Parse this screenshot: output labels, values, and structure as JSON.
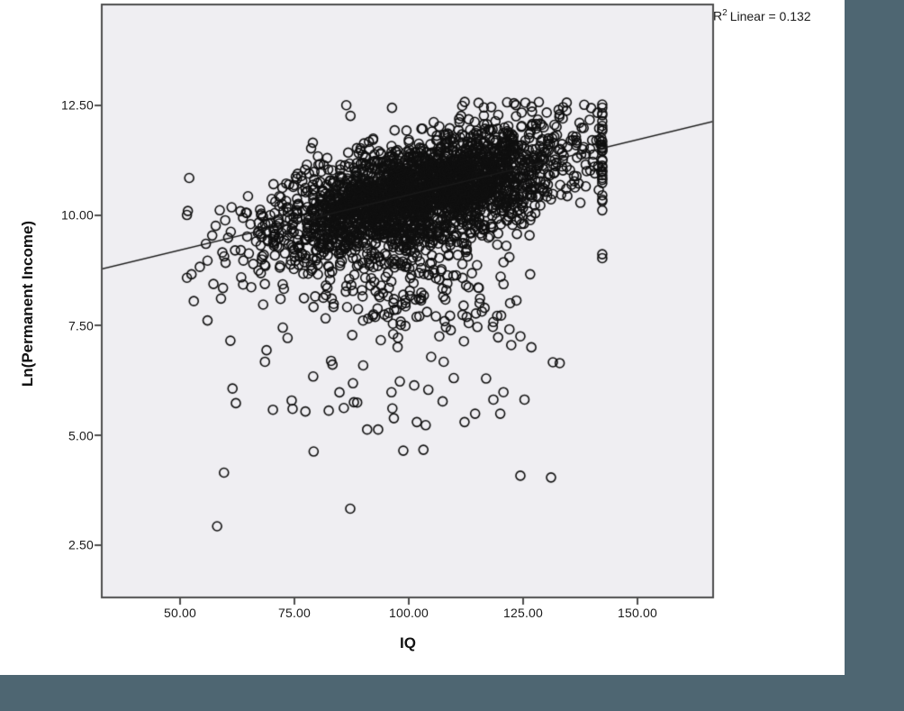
{
  "chrome": {
    "right_strip_color": "#4e6672",
    "bottom_bar_color": "#4e6672"
  },
  "chart_data": {
    "type": "scatter",
    "title": "",
    "xlabel": "IQ",
    "ylabel": "Ln(Permanent Income)",
    "annotation": {
      "prefix": "R",
      "sup": "2",
      "rest": "Linear = 0.132"
    },
    "x_ticks": [
      50,
      75,
      100,
      125,
      150
    ],
    "x_tick_labels": [
      "50.00",
      "75.00",
      "100.00",
      "125.00",
      "150.00"
    ],
    "y_ticks": [
      12.5,
      10.0,
      7.5,
      5.0,
      2.5
    ],
    "y_tick_labels": [
      "12.50",
      "10.00",
      "7.50",
      "5.00",
      "2.50"
    ],
    "xlim": [
      33.3,
      166.6
    ],
    "ylim": [
      1.27,
      14.73
    ],
    "grid": false,
    "legend": "none",
    "plot_bg": "#efeef2",
    "frame_color": "#4d4d4d",
    "marker": {
      "shape": "open-circle",
      "radius": 5.0,
      "stroke": "#101010",
      "stroke_width": 1.6
    },
    "regression_line": {
      "slope": 0.0251,
      "intercept": 7.955,
      "r_squared": 0.132,
      "color": "#1a1a1a",
      "width": 1.4
    },
    "point_cloud_model": {
      "seed": 1337,
      "main_cloud": {
        "n": 2600,
        "x_mean": 103,
        "x_sd": 16.5,
        "x_min": 51.5,
        "x_max": 142.3,
        "residual_sd": 0.6,
        "y_cap": 12.58
      },
      "mid_tail": {
        "n": 210,
        "x_mean": 97,
        "x_sd": 14,
        "x_min": 56,
        "x_max": 138,
        "y_mean": 8.35,
        "y_sd": 0.72,
        "y_min": 6.3,
        "y_max": 9.6
      },
      "low_band": {
        "n": 16,
        "x_mean": 93,
        "x_sd": 16,
        "x_min": 55,
        "x_max": 135,
        "y_mean": 5.95,
        "y_sd": 0.45,
        "y_min": 5.3,
        "y_max": 6.9
      },
      "ceiling_column": {
        "x": 142.3,
        "n": 14,
        "y_mean": 10.7,
        "y_sd": 1.05,
        "y_min": 8.85,
        "y_max": 12.45
      },
      "outlier_points": [
        [
          58.1,
          2.93
        ],
        [
          87.2,
          3.33
        ],
        [
          59.6,
          4.15
        ],
        [
          124.4,
          4.08
        ],
        [
          131.1,
          4.04
        ],
        [
          79.2,
          4.63
        ],
        [
          98.8,
          4.65
        ],
        [
          103.2,
          4.67
        ],
        [
          90.9,
          5.13
        ],
        [
          93.3,
          5.13
        ],
        [
          103.7,
          5.23
        ],
        [
          114.5,
          5.49
        ],
        [
          120.0,
          5.49
        ],
        [
          62.2,
          5.73
        ],
        [
          70.3,
          5.58
        ],
        [
          74.4,
          5.79
        ],
        [
          74.6,
          5.6
        ],
        [
          77.4,
          5.54
        ],
        [
          82.5,
          5.56
        ],
        [
          85.8,
          5.62
        ],
        [
          88.0,
          5.75
        ],
        [
          107.4,
          5.77
        ],
        [
          118.5,
          5.81
        ],
        [
          125.3,
          5.81
        ],
        [
          120.7,
          5.98
        ],
        [
          116.9,
          6.29
        ],
        [
          133.0,
          6.64
        ],
        [
          131.5,
          6.66
        ],
        [
          122.4,
          7.05
        ],
        [
          126.8,
          7.0
        ],
        [
          124.4,
          7.25
        ],
        [
          61.0,
          7.15
        ],
        [
          52.0,
          10.85
        ],
        [
          51.7,
          10.1
        ],
        [
          52.5,
          8.66
        ],
        [
          56.0,
          8.97
        ],
        [
          57.3,
          8.44
        ],
        [
          53.0,
          8.05
        ]
      ]
    }
  }
}
